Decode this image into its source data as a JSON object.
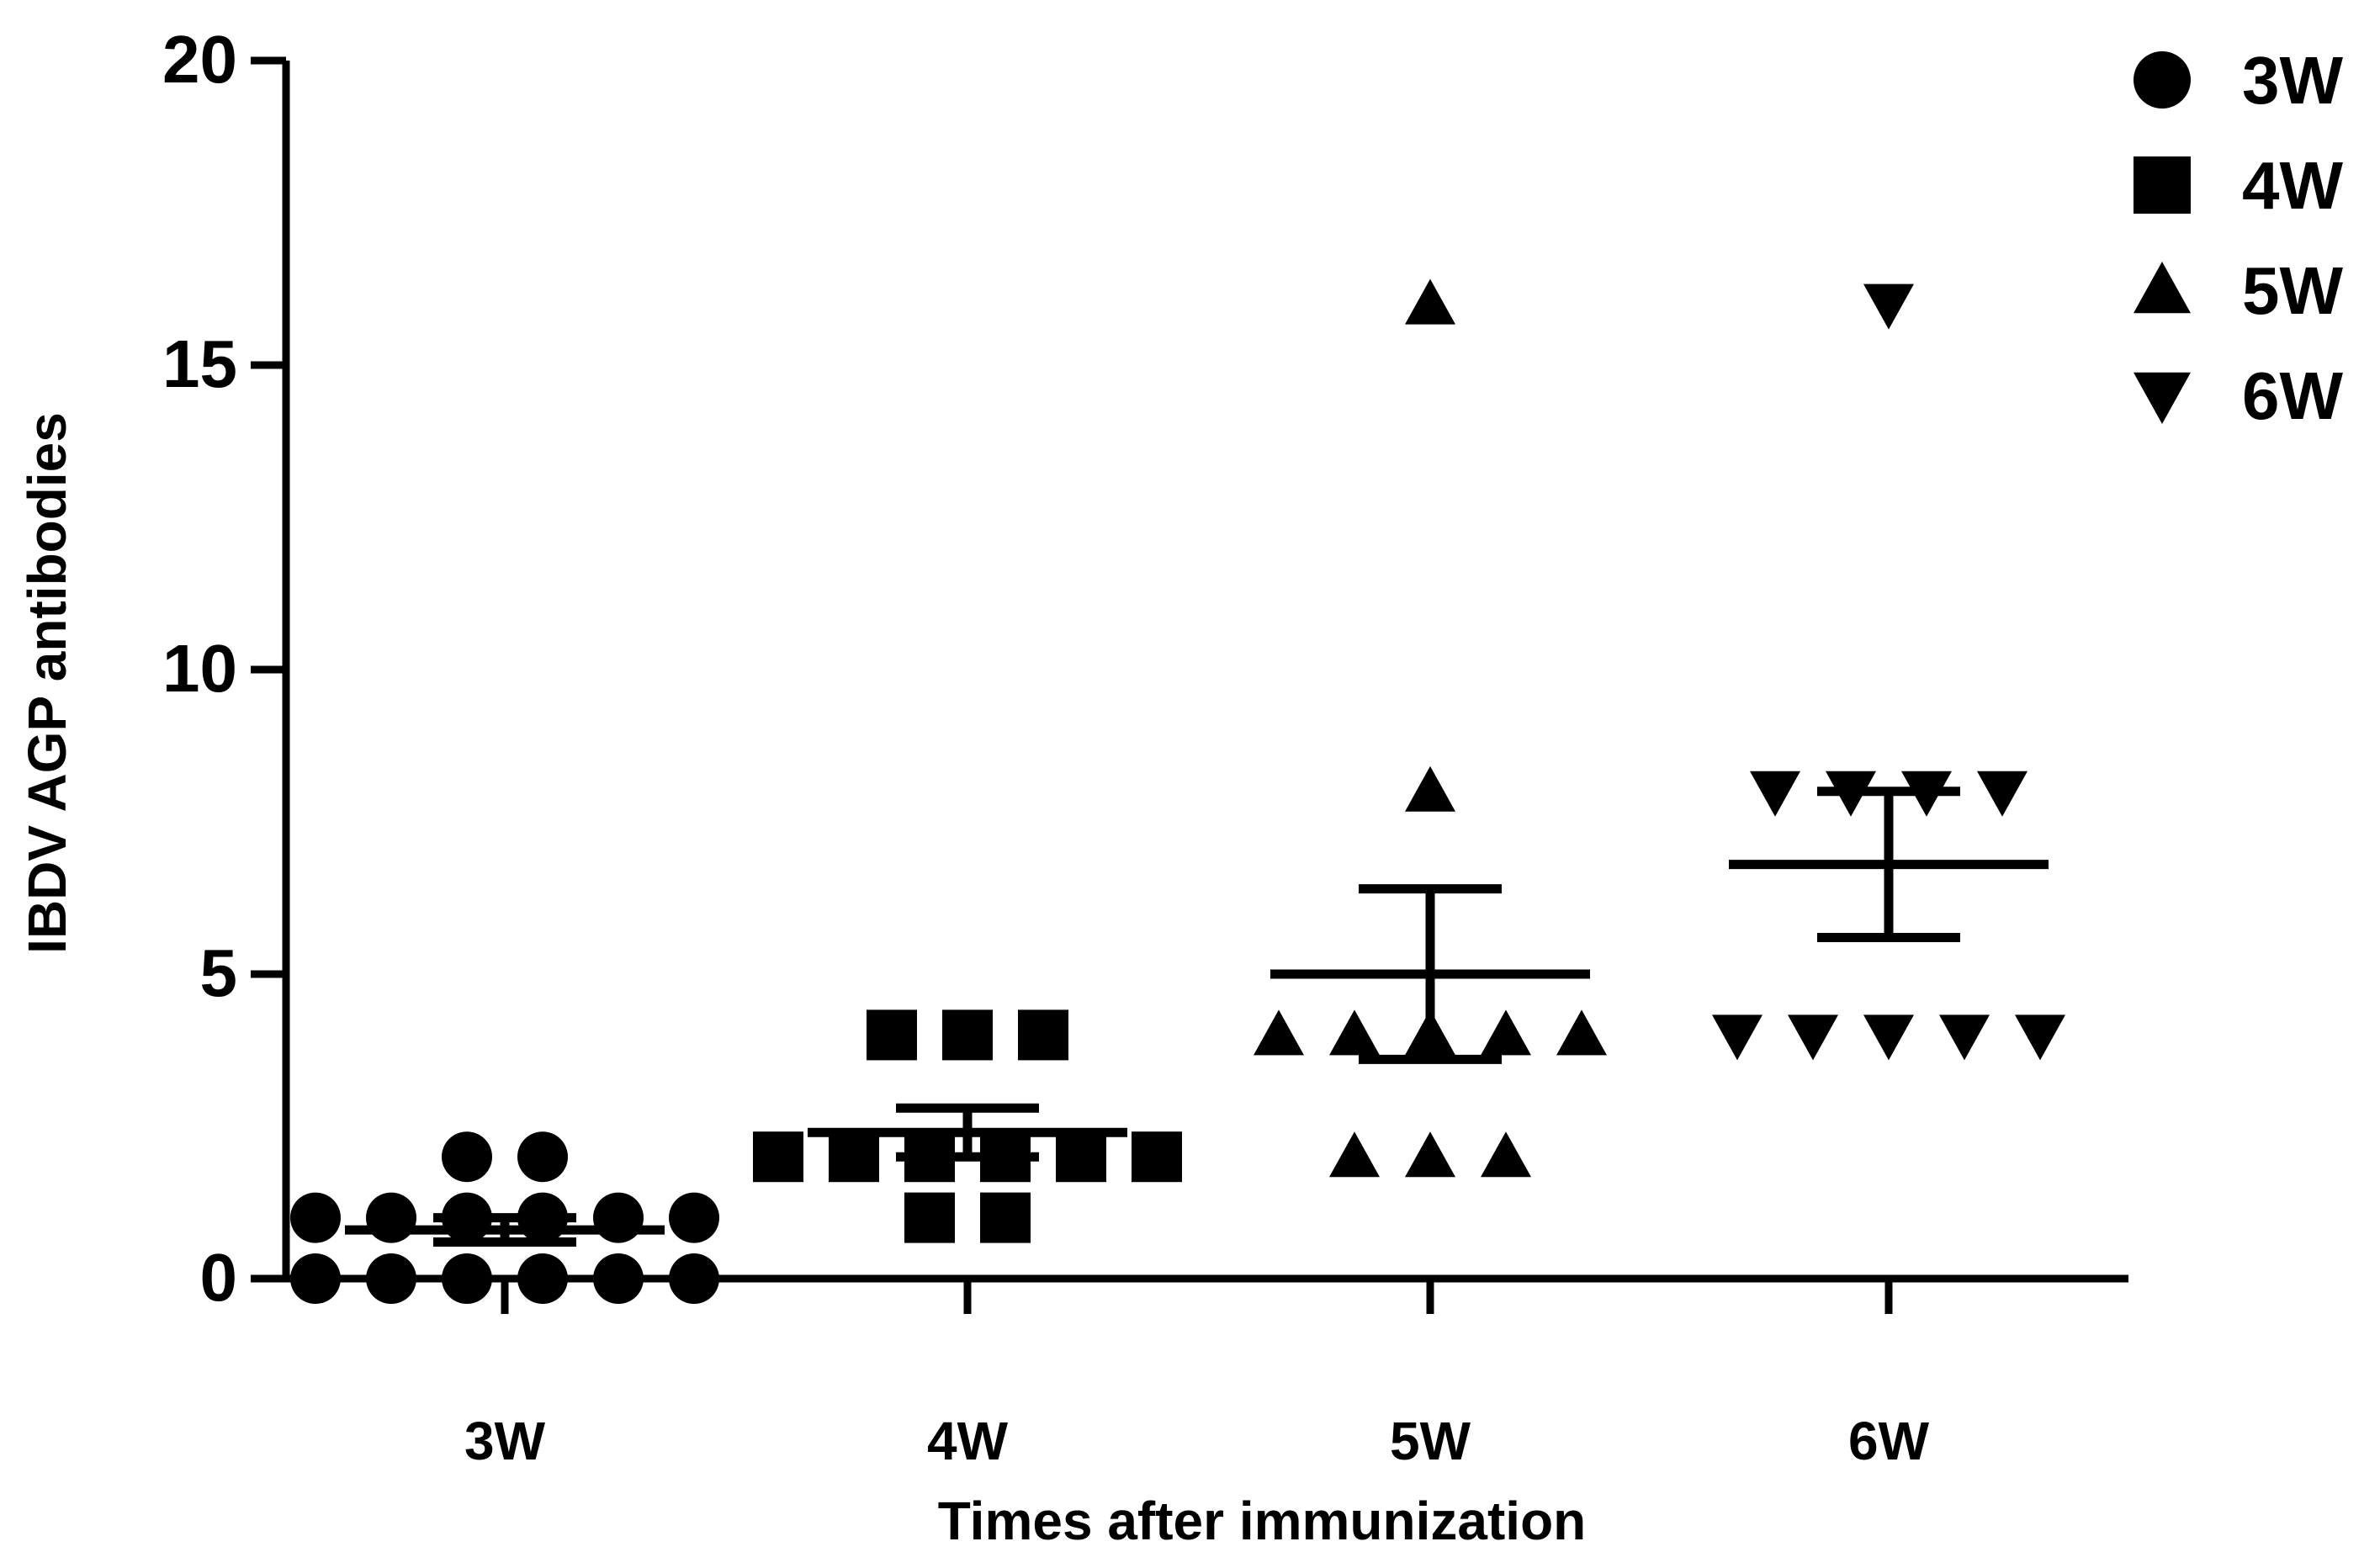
{
  "chart_data": {
    "type": "scatter",
    "ylabel": "IBDV  AGP antibodies",
    "xlabel": "Times after immunization",
    "ylim": [
      0,
      20
    ],
    "yticks": [
      0,
      5,
      10,
      15,
      20
    ],
    "grid": false,
    "legend_position": "top-right",
    "categories": [
      "3W",
      "4W",
      "5W",
      "6W"
    ],
    "series": [
      {
        "name": "3W",
        "marker": "circle",
        "values": [
          2,
          2,
          1,
          1,
          1,
          1,
          1,
          1,
          0,
          0,
          0,
          0,
          0,
          0
        ],
        "mean": 0.8,
        "sem_low": 0.6,
        "sem_high": 1.0
      },
      {
        "name": "4W",
        "marker": "square",
        "values": [
          4,
          4,
          4,
          2,
          2,
          2,
          2,
          2,
          2,
          1,
          1
        ],
        "mean": 2.4,
        "sem_low": 2.0,
        "sem_high": 2.8
      },
      {
        "name": "5W",
        "marker": "triangle-up",
        "values": [
          16,
          8,
          4,
          4,
          4,
          4,
          4,
          2,
          2,
          2
        ],
        "mean": 5.0,
        "sem_low": 3.6,
        "sem_high": 6.4
      },
      {
        "name": "6W",
        "marker": "triangle-down",
        "values": [
          16,
          8,
          8,
          8,
          8,
          4,
          4,
          4,
          4,
          4
        ],
        "mean": 6.8,
        "sem_low": 5.6,
        "sem_high": 8.0
      }
    ]
  }
}
